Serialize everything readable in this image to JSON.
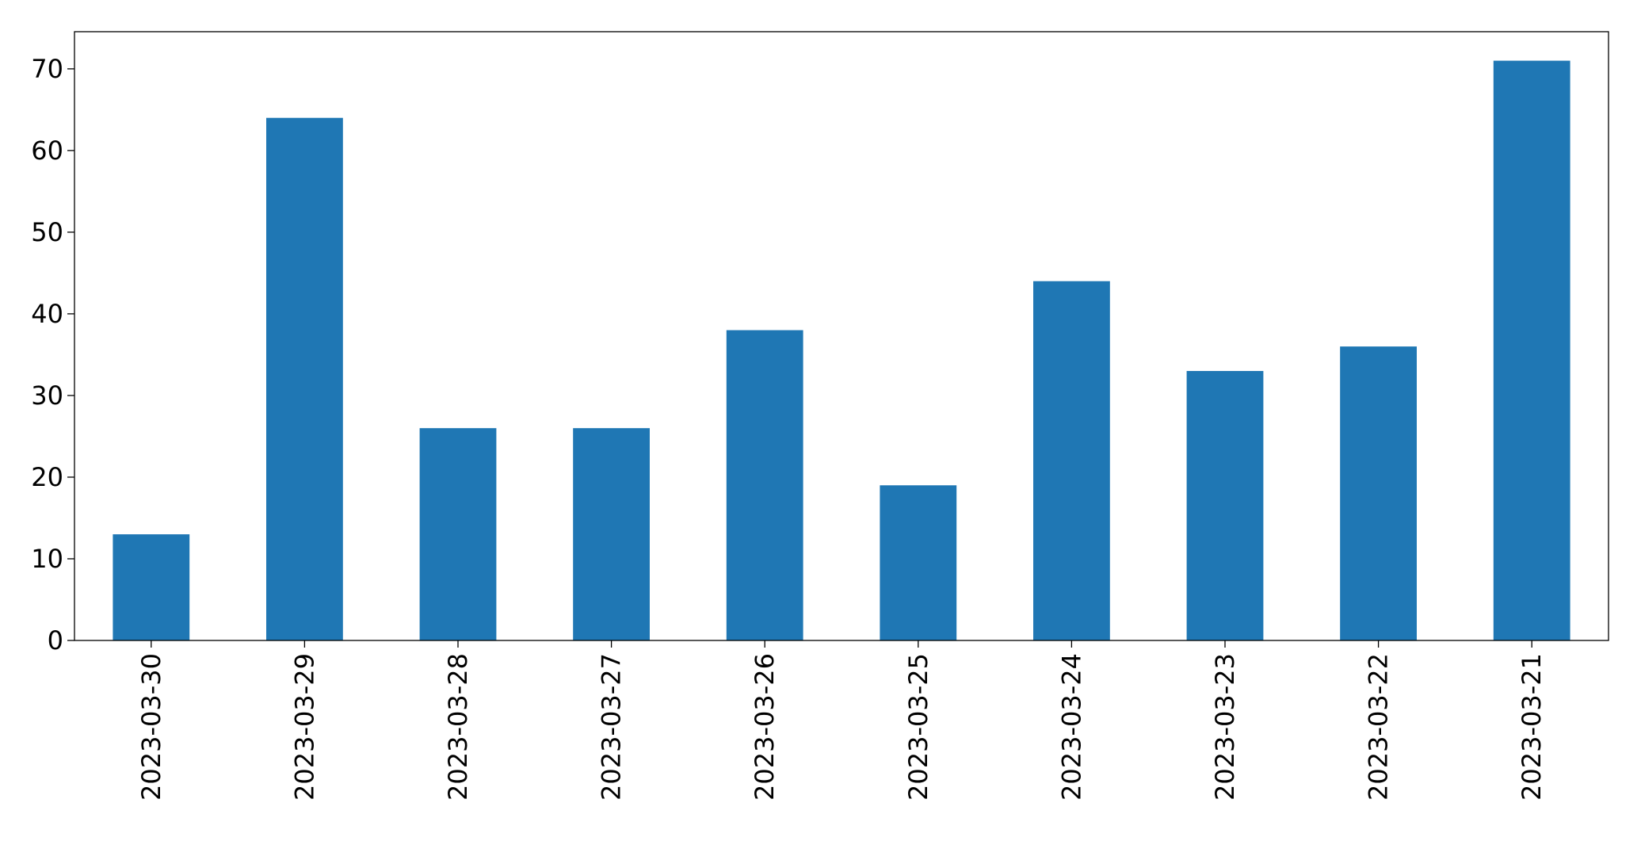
{
  "chart_data": {
    "type": "bar",
    "categories": [
      "2023-03-30",
      "2023-03-29",
      "2023-03-28",
      "2023-03-27",
      "2023-03-26",
      "2023-03-25",
      "2023-03-24",
      "2023-03-23",
      "2023-03-22",
      "2023-03-21"
    ],
    "values": [
      13,
      64,
      26,
      26,
      38,
      19,
      44,
      33,
      36,
      71
    ],
    "color": "#1f77b4",
    "ylim": [
      0,
      74.55
    ],
    "yticks": [
      0,
      10,
      20,
      30,
      40,
      50,
      60,
      70
    ],
    "grid": false
  }
}
